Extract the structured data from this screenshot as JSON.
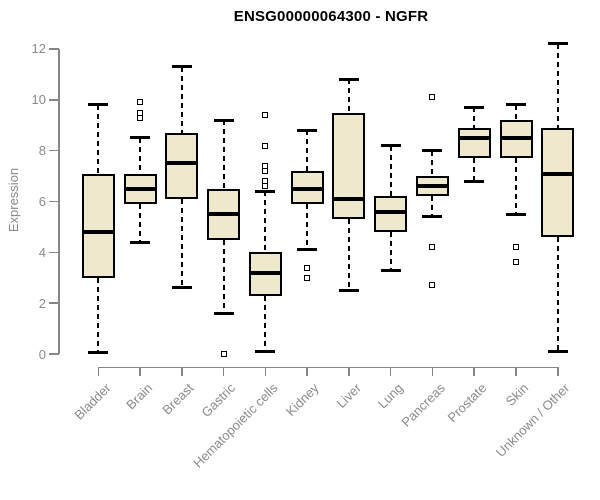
{
  "title": "ENSG00000064300 - NGFR",
  "chart_data": {
    "type": "boxplot",
    "title": "ENSG00000064300 - NGFR",
    "xlabel": "",
    "ylabel": "Expression",
    "ylim": [
      0,
      12
    ],
    "yticks": [
      0,
      2,
      4,
      6,
      8,
      10,
      12
    ],
    "grid": false,
    "legend": "none",
    "categories": [
      "Bladder",
      "Brain",
      "Breast",
      "Gastric",
      "Hematopoietic cells",
      "Kidney",
      "Liver",
      "Lung",
      "Pancreas",
      "Prostate",
      "Skin",
      "Unknown / Other"
    ],
    "series": [
      {
        "name": "Bladder",
        "whisker_low": 0.05,
        "q1": 3.0,
        "median": 4.8,
        "q3": 7.1,
        "whisker_high": 9.8,
        "outliers": []
      },
      {
        "name": "Brain",
        "whisker_low": 4.4,
        "q1": 5.9,
        "median": 6.5,
        "q3": 7.1,
        "whisker_high": 8.5,
        "outliers": [
          9.9,
          9.5,
          9.3
        ]
      },
      {
        "name": "Breast",
        "whisker_low": 2.6,
        "q1": 6.1,
        "median": 7.5,
        "q3": 8.7,
        "whisker_high": 11.3,
        "outliers": []
      },
      {
        "name": "Gastric",
        "whisker_low": 1.6,
        "q1": 4.5,
        "median": 5.5,
        "q3": 6.5,
        "whisker_high": 9.2,
        "outliers": [
          0.0
        ]
      },
      {
        "name": "Hematopoietic cells",
        "whisker_low": 0.1,
        "q1": 2.3,
        "median": 3.2,
        "q3": 4.0,
        "whisker_high": 6.4,
        "outliers": [
          9.4,
          8.2,
          7.4,
          7.2,
          6.8,
          6.6
        ]
      },
      {
        "name": "Kidney",
        "whisker_low": 4.1,
        "q1": 5.9,
        "median": 6.5,
        "q3": 7.2,
        "whisker_high": 8.8,
        "outliers": [
          3.4,
          3.0
        ]
      },
      {
        "name": "Liver",
        "whisker_low": 2.5,
        "q1": 5.3,
        "median": 6.1,
        "q3": 9.5,
        "whisker_high": 10.8,
        "outliers": []
      },
      {
        "name": "Lung",
        "whisker_low": 3.3,
        "q1": 4.8,
        "median": 5.6,
        "q3": 6.2,
        "whisker_high": 8.2,
        "outliers": []
      },
      {
        "name": "Pancreas",
        "whisker_low": 5.4,
        "q1": 6.2,
        "median": 6.6,
        "q3": 7.0,
        "whisker_high": 8.0,
        "outliers": [
          10.1,
          4.2,
          2.7
        ]
      },
      {
        "name": "Prostate",
        "whisker_low": 6.8,
        "q1": 7.7,
        "median": 8.5,
        "q3": 8.9,
        "whisker_high": 9.7,
        "outliers": []
      },
      {
        "name": "Skin",
        "whisker_low": 5.5,
        "q1": 7.7,
        "median": 8.5,
        "q3": 9.2,
        "whisker_high": 9.8,
        "outliers": [
          4.2,
          3.6
        ]
      },
      {
        "name": "Unknown / Other",
        "whisker_low": 0.1,
        "q1": 4.6,
        "median": 7.1,
        "q3": 8.9,
        "whisker_high": 12.2,
        "outliers": []
      }
    ],
    "colors": {
      "box_fill": "#EEE8CD",
      "box_border": "#000000",
      "median": "#000000",
      "axis": "#878787",
      "tick_text": "#8a8a8a",
      "title_text": "#000000"
    }
  }
}
